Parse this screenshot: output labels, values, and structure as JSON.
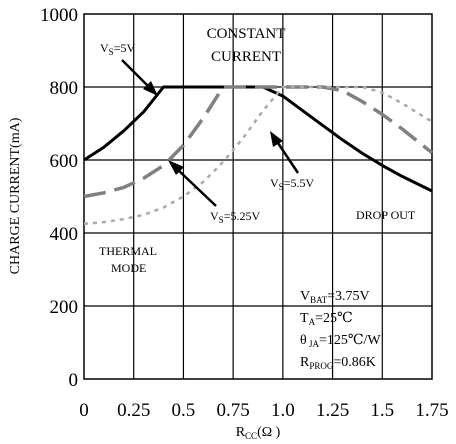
{
  "chart_data": {
    "type": "line",
    "title": "",
    "xlabel_main": "R",
    "xlabel_sub": "CC",
    "xlabel_unit": "(Ω )",
    "ylabel": "CHARGE CURRENT(mA)",
    "xlim": [
      0,
      1.75
    ],
    "ylim": [
      0,
      1000
    ],
    "x_ticks": [
      0,
      0.25,
      0.5,
      0.75,
      1.0,
      1.25,
      1.5,
      1.75
    ],
    "x_tick_labels": [
      "0",
      "0.25",
      "0.5",
      "0.75",
      "1.0",
      "1.25",
      "1.5",
      "1.75"
    ],
    "y_ticks": [
      0,
      200,
      400,
      600,
      800,
      1000
    ],
    "y_tick_labels": [
      "0",
      "200",
      "400",
      "600",
      "800",
      "1000"
    ],
    "grid": true,
    "series": [
      {
        "label_main": "V",
        "label_sub": "S",
        "label_rest": "=5V",
        "color": "#000000",
        "style": "solid",
        "x": [
          0,
          0.1,
          0.2,
          0.3,
          0.4,
          0.5,
          0.6,
          0.7,
          0.8,
          0.9,
          1.0,
          1.1,
          1.2,
          1.3,
          1.4,
          1.5,
          1.6,
          1.75
        ],
        "y": [
          600,
          635,
          680,
          732,
          800,
          800,
          800,
          800,
          800,
          800,
          775,
          735,
          695,
          655,
          618,
          585,
          555,
          515
        ]
      },
      {
        "label_main": "V",
        "label_sub": "S",
        "label_rest": "=5.25V",
        "color": "#808080",
        "style": "dashed",
        "x": [
          0,
          0.1,
          0.2,
          0.3,
          0.4,
          0.5,
          0.6,
          0.7,
          0.8,
          0.9,
          1.0,
          1.1,
          1.2,
          1.3,
          1.4,
          1.5,
          1.6,
          1.75
        ],
        "y": [
          500,
          510,
          525,
          550,
          585,
          640,
          715,
          800,
          800,
          800,
          800,
          800,
          800,
          790,
          760,
          725,
          685,
          620
        ]
      },
      {
        "label_main": "V",
        "label_sub": "S",
        "label_rest": "=5.5V",
        "color": "#aaaaaa",
        "style": "dotted",
        "x": [
          0,
          0.1,
          0.2,
          0.3,
          0.4,
          0.5,
          0.6,
          0.7,
          0.8,
          0.9,
          1.0,
          1.1,
          1.2,
          1.3,
          1.4,
          1.5,
          1.6,
          1.75
        ],
        "y": [
          425,
          430,
          438,
          450,
          470,
          500,
          540,
          595,
          660,
          735,
          800,
          800,
          800,
          800,
          800,
          785,
          755,
          705
        ]
      }
    ],
    "annotations": {
      "constant_current_line1": "CONSTANT",
      "constant_current_line2": "CURRENT",
      "thermal_line1": "THERMAL",
      "thermal_line2": "MODE",
      "drop_out": "DROP OUT"
    },
    "conditions": [
      {
        "main": "V",
        "sub": "BAT",
        "rest": "=3.75V"
      },
      {
        "main": "T",
        "sub": "A",
        "rest": "=25℃"
      },
      {
        "main": "θ",
        "sub": " JA",
        "rest": "=125℃/W"
      },
      {
        "main": "R",
        "sub": "PROG",
        "rest": "=0.86K"
      }
    ]
  }
}
